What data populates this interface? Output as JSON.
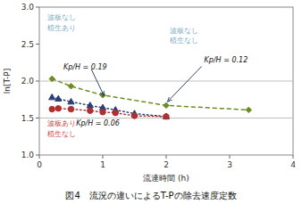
{
  "chart_data": {
    "type": "line",
    "title": "図4　流況の違いによるT-Pの除去速度定数",
    "x_label": "流達時間 (h)",
    "y_label": "ln[T-P]",
    "xlim": [
      0,
      4
    ],
    "ylim": [
      1.0,
      3.0
    ],
    "xticks": [
      0,
      1,
      2,
      3,
      4
    ],
    "yticks": [
      {
        "value": 1.0,
        "label": "1.0"
      },
      1.5,
      {
        "value": 2.0,
        "label": "2.0"
      },
      2.5,
      {
        "value": 3.0,
        "label": "3.0"
      }
    ],
    "hlines": [
      1.5,
      2.0
    ],
    "series": [
      {
        "color": "#6b8c23",
        "marker": "diamond",
        "line_style": "dashed",
        "x": [
          0.2,
          0.5,
          1.0,
          2.0,
          3.3
        ],
        "values": [
          2.03,
          1.93,
          1.81,
          1.67,
          1.61
        ]
      },
      {
        "color": "#2a3f7a",
        "marker": "triangle",
        "line_style": "dotted",
        "x": [
          0.2,
          0.3,
          0.5,
          0.8,
          1.0,
          1.2,
          1.5,
          2.0
        ],
        "values": [
          1.78,
          1.76,
          1.72,
          1.67,
          1.64,
          1.61,
          1.56,
          1.52
        ]
      },
      {
        "color": "#b03030",
        "marker": "circle",
        "line_style": "dotted",
        "x": [
          0.2,
          0.3,
          0.5,
          0.8,
          1.0,
          1.2,
          1.5,
          2.0
        ],
        "values": [
          1.62,
          1.63,
          1.62,
          1.6,
          1.58,
          1.57,
          1.53,
          1.52
        ]
      }
    ],
    "annotations": [
      {
        "text": "波板なし",
        "x": 0.12,
        "y": 2.9,
        "color": "#7bacc4",
        "anchor": "top"
      },
      {
        "text": "植生あり",
        "x": 0.12,
        "y": 2.76,
        "color": "#7bacc4",
        "anchor": "top"
      },
      {
        "text": "波板なし",
        "x": 2.05,
        "y": 2.72,
        "color": "#7bacc4",
        "anchor": "top"
      },
      {
        "text": "植生なし",
        "x": 2.05,
        "y": 2.58,
        "color": "#7bacc4",
        "anchor": "top"
      },
      {
        "text": "波板あり",
        "x": 0.12,
        "y": 1.46,
        "color": "#cc4444",
        "anchor": "top"
      },
      {
        "text": "植生なし",
        "x": 0.12,
        "y": 1.32,
        "color": "#cc4444",
        "anchor": "top"
      },
      {
        "text": "Kp/H = 0.19",
        "x": 0.38,
        "y": 2.13,
        "color": "#111111",
        "anchor": "bottom",
        "arrow": {
          "from": [
            0.82,
            2.16
          ],
          "to": [
            1.02,
            1.8
          ]
        }
      },
      {
        "text": "Kp/H = 0.06",
        "x": 0.58,
        "y": 1.37,
        "color": "#111111",
        "anchor": "bottom"
      },
      {
        "text": "Kp/H = 0.12",
        "x": 2.6,
        "y": 2.23,
        "color": "#111111",
        "anchor": "bottom",
        "arrow": {
          "from": [
            2.56,
            2.2
          ],
          "to": [
            2.02,
            1.72
          ]
        }
      }
    ]
  }
}
